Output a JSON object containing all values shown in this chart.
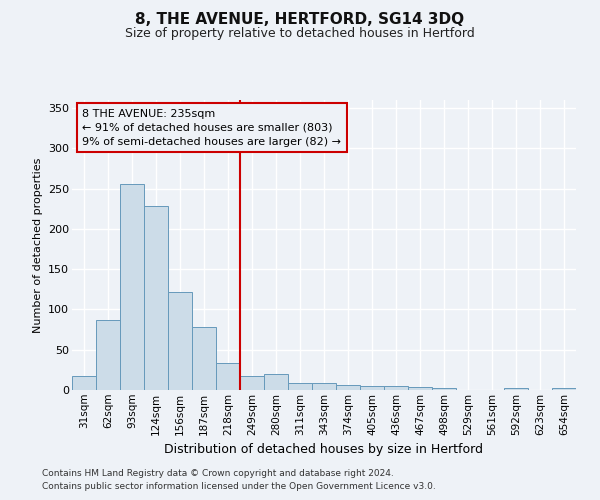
{
  "title": "8, THE AVENUE, HERTFORD, SG14 3DQ",
  "subtitle": "Size of property relative to detached houses in Hertford",
  "xlabel": "Distribution of detached houses by size in Hertford",
  "ylabel": "Number of detached properties",
  "bar_labels": [
    "31sqm",
    "62sqm",
    "93sqm",
    "124sqm",
    "156sqm",
    "187sqm",
    "218sqm",
    "249sqm",
    "280sqm",
    "311sqm",
    "343sqm",
    "374sqm",
    "405sqm",
    "436sqm",
    "467sqm",
    "498sqm",
    "529sqm",
    "561sqm",
    "592sqm",
    "623sqm",
    "654sqm"
  ],
  "bar_values": [
    18,
    87,
    256,
    229,
    122,
    78,
    33,
    18,
    20,
    9,
    9,
    6,
    5,
    5,
    4,
    3,
    0,
    0,
    3,
    0,
    3
  ],
  "bar_color": "#ccdce8",
  "bar_edge_color": "#6699bb",
  "vline_color": "#cc0000",
  "vline_pos": 7.0,
  "annotation_line1": "8 THE AVENUE: 235sqm",
  "annotation_line2": "← 91% of detached houses are smaller (803)",
  "annotation_line3": "9% of semi-detached houses are larger (82) →",
  "annotation_box_color": "#cc0000",
  "ylim": [
    0,
    360
  ],
  "yticks": [
    0,
    50,
    100,
    150,
    200,
    250,
    300,
    350
  ],
  "footer1": "Contains HM Land Registry data © Crown copyright and database right 2024.",
  "footer2": "Contains public sector information licensed under the Open Government Licence v3.0.",
  "bg_color": "#eef2f7",
  "grid_color": "#ffffff",
  "title_fontsize": 11,
  "subtitle_fontsize": 9,
  "xlabel_fontsize": 9,
  "ylabel_fontsize": 8,
  "tick_fontsize": 8,
  "xtick_fontsize": 7.5,
  "footer_fontsize": 6.5
}
